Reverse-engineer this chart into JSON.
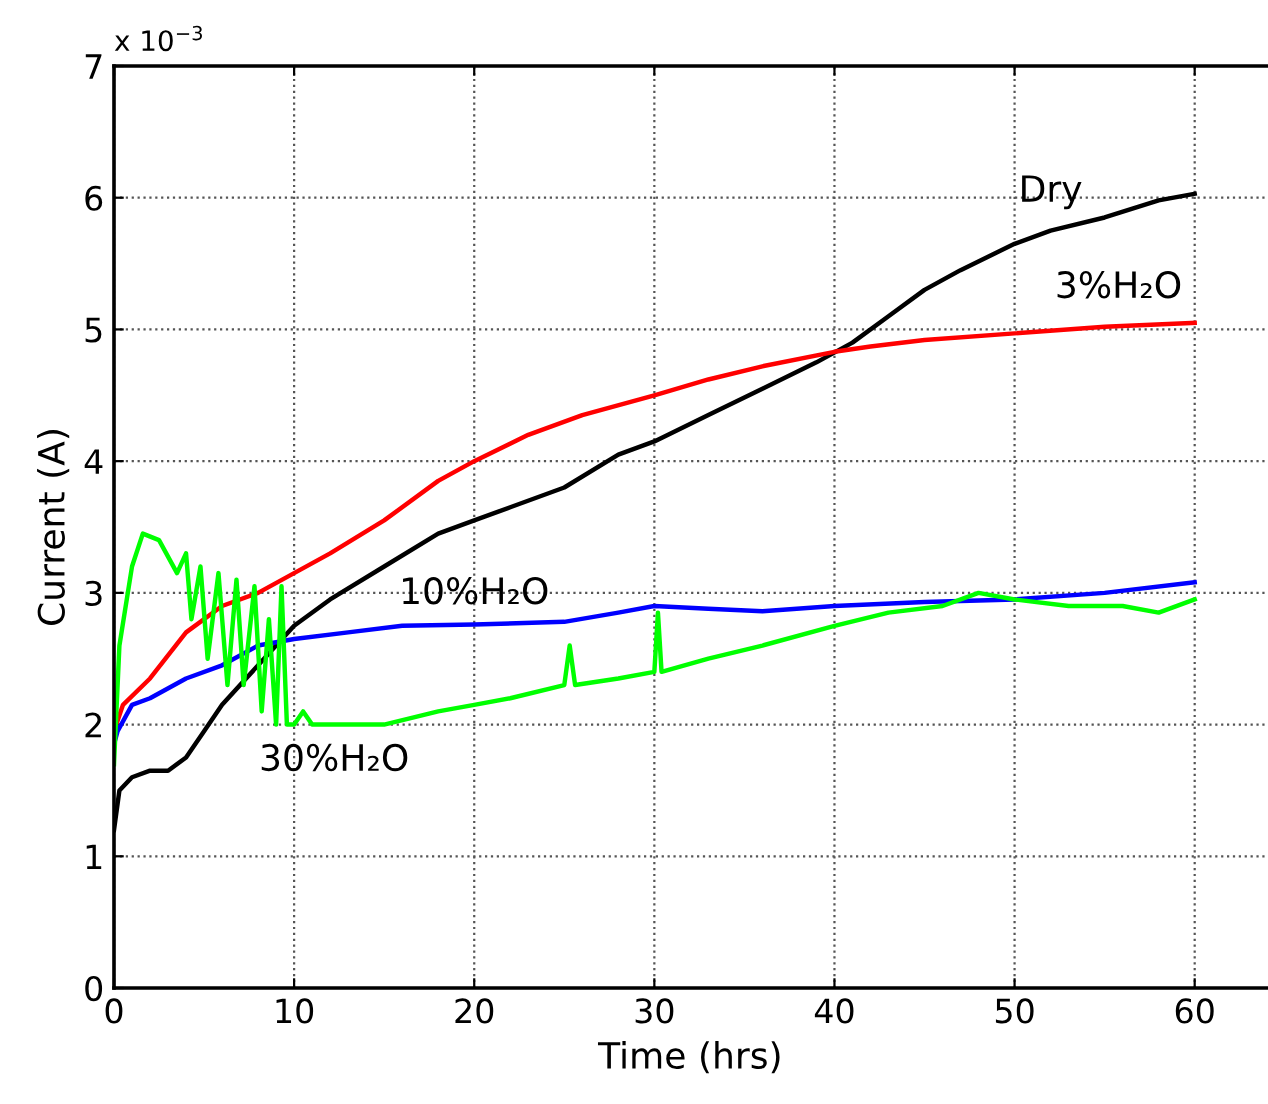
{
  "chart_data": {
    "type": "line",
    "xlabel": "Time (hrs)",
    "ylabel": "Current (A)",
    "xlim": [
      0,
      64
    ],
    "xticks": [
      0,
      10,
      20,
      30,
      40,
      50,
      60
    ],
    "ylim": [
      0,
      7
    ],
    "yticks": [
      0,
      1,
      2,
      3,
      4,
      5,
      6,
      7
    ],
    "grid": true,
    "line_style": "solid",
    "series": [
      {
        "name": "Dry",
        "color": "#000000",
        "x": [
          0,
          0.3,
          1,
          2,
          3,
          4,
          5,
          6,
          8,
          10,
          12,
          15,
          18,
          20,
          22,
          25,
          28,
          30,
          33,
          36,
          39,
          41,
          43,
          45,
          47,
          50,
          52,
          55,
          58,
          60
        ],
        "values": [
          1.2,
          1.5,
          1.6,
          1.65,
          1.65,
          1.75,
          1.95,
          2.15,
          2.45,
          2.75,
          2.95,
          3.2,
          3.45,
          3.55,
          3.65,
          3.8,
          4.05,
          4.15,
          4.35,
          4.55,
          4.75,
          4.9,
          5.1,
          5.3,
          5.45,
          5.65,
          5.75,
          5.85,
          5.98,
          6.03
        ]
      },
      {
        "name": "3%H₂O",
        "color": "#ff0000",
        "x": [
          0,
          0.5,
          2,
          4,
          6,
          8,
          10,
          12,
          15,
          18,
          20,
          23,
          26,
          30,
          33,
          36,
          40,
          42,
          45,
          50,
          55,
          60
        ],
        "values": [
          1.95,
          2.15,
          2.35,
          2.7,
          2.9,
          3.0,
          3.15,
          3.3,
          3.55,
          3.85,
          4.0,
          4.2,
          4.35,
          4.5,
          4.62,
          4.72,
          4.83,
          4.87,
          4.92,
          4.97,
          5.02,
          5.05
        ]
      },
      {
        "name": "10%H₂O",
        "color": "#0000ff",
        "x": [
          0,
          0.2,
          1,
          2,
          4,
          6,
          8,
          10,
          13,
          16,
          20,
          25,
          28,
          30,
          33,
          36,
          40,
          45,
          50,
          55,
          60
        ],
        "values": [
          1.85,
          1.95,
          2.15,
          2.2,
          2.35,
          2.45,
          2.6,
          2.65,
          2.7,
          2.75,
          2.76,
          2.78,
          2.85,
          2.9,
          2.88,
          2.86,
          2.9,
          2.93,
          2.95,
          3.0,
          3.08
        ]
      },
      {
        "name": "30%H₂O",
        "color": "#00ff00",
        "x": [
          0,
          0.3,
          1,
          1.6,
          2.5,
          3.5,
          4,
          4.3,
          4.8,
          5.2,
          5.8,
          6.3,
          6.8,
          7.2,
          7.8,
          8.2,
          8.6,
          9,
          9.3,
          9.6,
          10,
          10.5,
          11,
          13,
          15,
          18,
          20,
          22,
          25,
          25.3,
          25.6,
          28,
          30,
          30.2,
          30.4,
          33,
          36,
          40,
          43,
          46,
          48,
          50,
          53,
          56,
          58,
          60
        ],
        "values": [
          1.7,
          2.6,
          3.2,
          3.45,
          3.4,
          3.15,
          3.3,
          2.8,
          3.2,
          2.5,
          3.15,
          2.3,
          3.1,
          2.3,
          3.05,
          2.1,
          2.8,
          2.0,
          3.05,
          2.0,
          2.0,
          2.1,
          2.0,
          2.0,
          2.0,
          2.1,
          2.15,
          2.2,
          2.3,
          2.6,
          2.3,
          2.35,
          2.4,
          2.85,
          2.4,
          2.5,
          2.6,
          2.75,
          2.85,
          2.9,
          3.0,
          2.95,
          2.9,
          2.9,
          2.85,
          2.95
        ]
      }
    ],
    "annotations": [
      "x 10$^{−3}$"
    ]
  }
}
